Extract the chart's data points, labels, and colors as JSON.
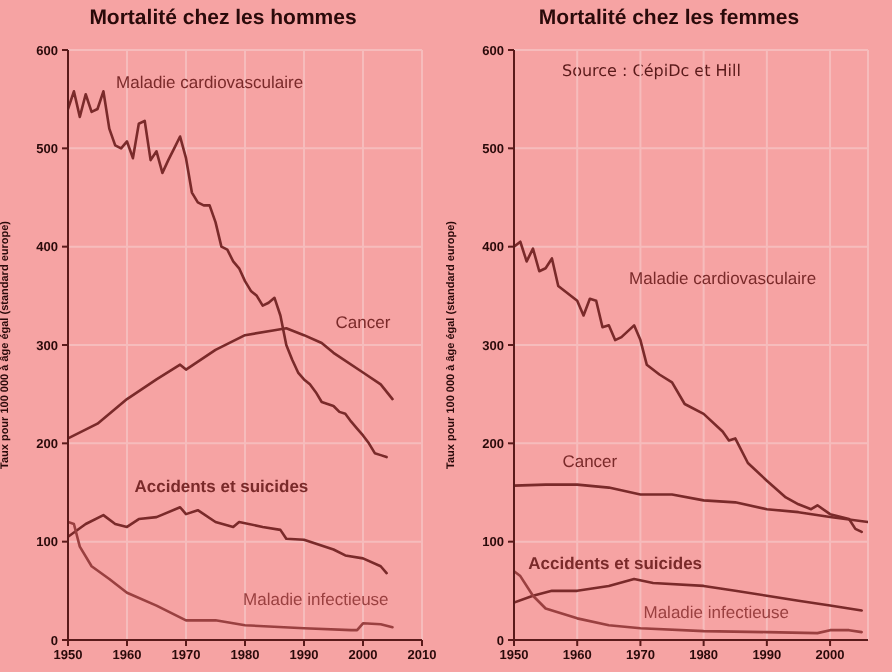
{
  "chart_data": [
    {
      "type": "line",
      "title": "Mortalité chez les hommes",
      "ylabel": "Taux pour 100 000 à âge égal (standard europe)",
      "xlim": [
        1950,
        2010
      ],
      "xticks": [
        1950,
        1960,
        1970,
        1980,
        1990,
        2000,
        2010
      ],
      "ylim": [
        0,
        600
      ],
      "yticks": [
        0,
        100,
        200,
        300,
        400,
        500,
        600
      ],
      "grid": true,
      "marker": "none",
      "line_style": "solid",
      "series": [
        {
          "name": "Maladie cardiovasculaire",
          "color": "#7a2a2a",
          "x": [
            1950,
            1951,
            1952,
            1953,
            1954,
            1955,
            1956,
            1957,
            1958,
            1959,
            1960,
            1961,
            1962,
            1963,
            1964,
            1965,
            1966,
            1967,
            1968,
            1969,
            1970,
            1971,
            1972,
            1973,
            1974,
            1975,
            1976,
            1977,
            1978,
            1979,
            1980,
            1981,
            1982,
            1983,
            1984,
            1985,
            1986,
            1987,
            1988,
            1989,
            1990,
            1991,
            1992,
            1993,
            1994,
            1995,
            1996,
            1997,
            1998,
            1999,
            2000,
            2001,
            2002,
            2003,
            2004
          ],
          "values": [
            540,
            558,
            532,
            555,
            537,
            540,
            558,
            520,
            503,
            500,
            507,
            490,
            525,
            528,
            488,
            497,
            475,
            488,
            500,
            512,
            490,
            455,
            445,
            442,
            442,
            425,
            400,
            397,
            385,
            378,
            365,
            355,
            350,
            340,
            343,
            348,
            330,
            300,
            285,
            272,
            265,
            260,
            252,
            242,
            240,
            238,
            232,
            230,
            222,
            215,
            208,
            200,
            190,
            188,
            186
          ]
        },
        {
          "name": "Cancer",
          "color": "#7a2a2a",
          "x": [
            1950,
            1955,
            1960,
            1965,
            1969,
            1970,
            1975,
            1980,
            1985,
            1987,
            1990,
            1993,
            1995,
            2000,
            2003,
            2005
          ],
          "values": [
            205,
            220,
            245,
            265,
            280,
            275,
            295,
            310,
            315,
            317,
            310,
            302,
            292,
            272,
            260,
            245
          ]
        },
        {
          "name": "Accidents et suicides",
          "color": "#7a2a2a",
          "x": [
            1950,
            1953,
            1956,
            1958,
            1960,
            1962,
            1965,
            1969,
            1970,
            1972,
            1975,
            1978,
            1979,
            1983,
            1986,
            1987,
            1990,
            1995,
            1997,
            2000,
            2003,
            2004
          ],
          "values": [
            105,
            118,
            127,
            118,
            115,
            123,
            125,
            135,
            128,
            132,
            120,
            115,
            120,
            115,
            112,
            103,
            102,
            92,
            86,
            83,
            75,
            68
          ]
        },
        {
          "name": "Maladie infectieuse",
          "color": "#9a4040",
          "x": [
            1950,
            1951,
            1952,
            1954,
            1957,
            1960,
            1965,
            1970,
            1975,
            1980,
            1990,
            1998,
            1999,
            2000,
            2003,
            2005
          ],
          "values": [
            120,
            118,
            95,
            75,
            62,
            48,
            35,
            20,
            20,
            15,
            12,
            10,
            10,
            17,
            16,
            13
          ]
        }
      ]
    },
    {
      "type": "line",
      "title": "Mortalité chez les femmes",
      "ylabel": "Taux pour 100 000 à âge égal (standard europe)",
      "annotations": [
        "Source : CépiDc et Hill"
      ],
      "xlim": [
        1950,
        2006
      ],
      "xticks": [
        1950,
        1960,
        1970,
        1980,
        1990,
        2000
      ],
      "ylim": [
        0,
        600
      ],
      "yticks": [
        0,
        100,
        200,
        300,
        400,
        500,
        600
      ],
      "grid": true,
      "marker": "none",
      "line_style": "solid",
      "series": [
        {
          "name": "Maladie cardiovasculaire",
          "color": "#7a2a2a",
          "x": [
            1950,
            1951,
            1952,
            1953,
            1954,
            1955,
            1956,
            1957,
            1960,
            1961,
            1962,
            1963,
            1964,
            1965,
            1966,
            1967,
            1969,
            1970,
            1971,
            1973,
            1975,
            1977,
            1980,
            1983,
            1984,
            1985,
            1987,
            1990,
            1993,
            1995,
            1997,
            1998,
            2000,
            2003,
            2004,
            2005
          ],
          "values": [
            400,
            405,
            385,
            398,
            375,
            378,
            388,
            360,
            345,
            330,
            347,
            345,
            318,
            320,
            305,
            308,
            320,
            305,
            280,
            270,
            262,
            240,
            230,
            212,
            203,
            205,
            180,
            162,
            145,
            138,
            133,
            137,
            128,
            123,
            113,
            110
          ]
        },
        {
          "name": "Cancer",
          "color": "#7a2a2a",
          "x": [
            1950,
            1955,
            1960,
            1965,
            1970,
            1975,
            1980,
            1985,
            1990,
            1995,
            2000,
            2006
          ],
          "values": [
            157,
            158,
            158,
            155,
            148,
            148,
            142,
            140,
            133,
            130,
            125,
            120
          ]
        },
        {
          "name": "Accidents et suicides",
          "color": "#7a2a2a",
          "x": [
            1950,
            1953,
            1956,
            1960,
            1965,
            1969,
            1972,
            1980,
            1985,
            1990,
            1995,
            2000,
            2005
          ],
          "values": [
            38,
            45,
            50,
            50,
            55,
            62,
            58,
            55,
            50,
            45,
            40,
            35,
            30
          ]
        },
        {
          "name": "Maladie infectieuse",
          "color": "#9a4040",
          "x": [
            1950,
            1951,
            1953,
            1955,
            1960,
            1965,
            1970,
            1980,
            1990,
            1998,
            2000,
            2003,
            2005
          ],
          "values": [
            70,
            65,
            45,
            32,
            22,
            15,
            12,
            9,
            8,
            7,
            10,
            10,
            8
          ]
        }
      ]
    }
  ]
}
